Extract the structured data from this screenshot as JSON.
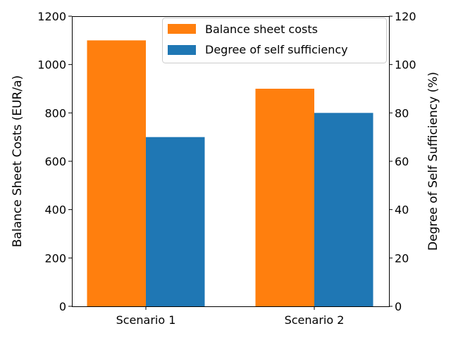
{
  "chart_data": {
    "type": "bar",
    "categories": [
      "Scenario 1",
      "Scenario 2"
    ],
    "series": [
      {
        "name": "Balance sheet costs",
        "axis": "left",
        "color": "#ff7f0e",
        "values": [
          1100,
          900
        ]
      },
      {
        "name": "Degree of self sufficiency",
        "axis": "right",
        "color": "#1f77b4",
        "values": [
          70,
          80
        ]
      }
    ],
    "ylabel": "Balance Sheet Costs (EUR/a)",
    "ylim": [
      0,
      1200
    ],
    "yticks": [
      0,
      200,
      400,
      600,
      800,
      1000,
      1200
    ],
    "y2label": "Degree of Self Sufficiency (%)",
    "y2lim": [
      0,
      120
    ],
    "y2ticks": [
      0,
      20,
      40,
      60,
      80,
      100,
      120
    ],
    "grid": false,
    "legend_position": "top-right"
  }
}
